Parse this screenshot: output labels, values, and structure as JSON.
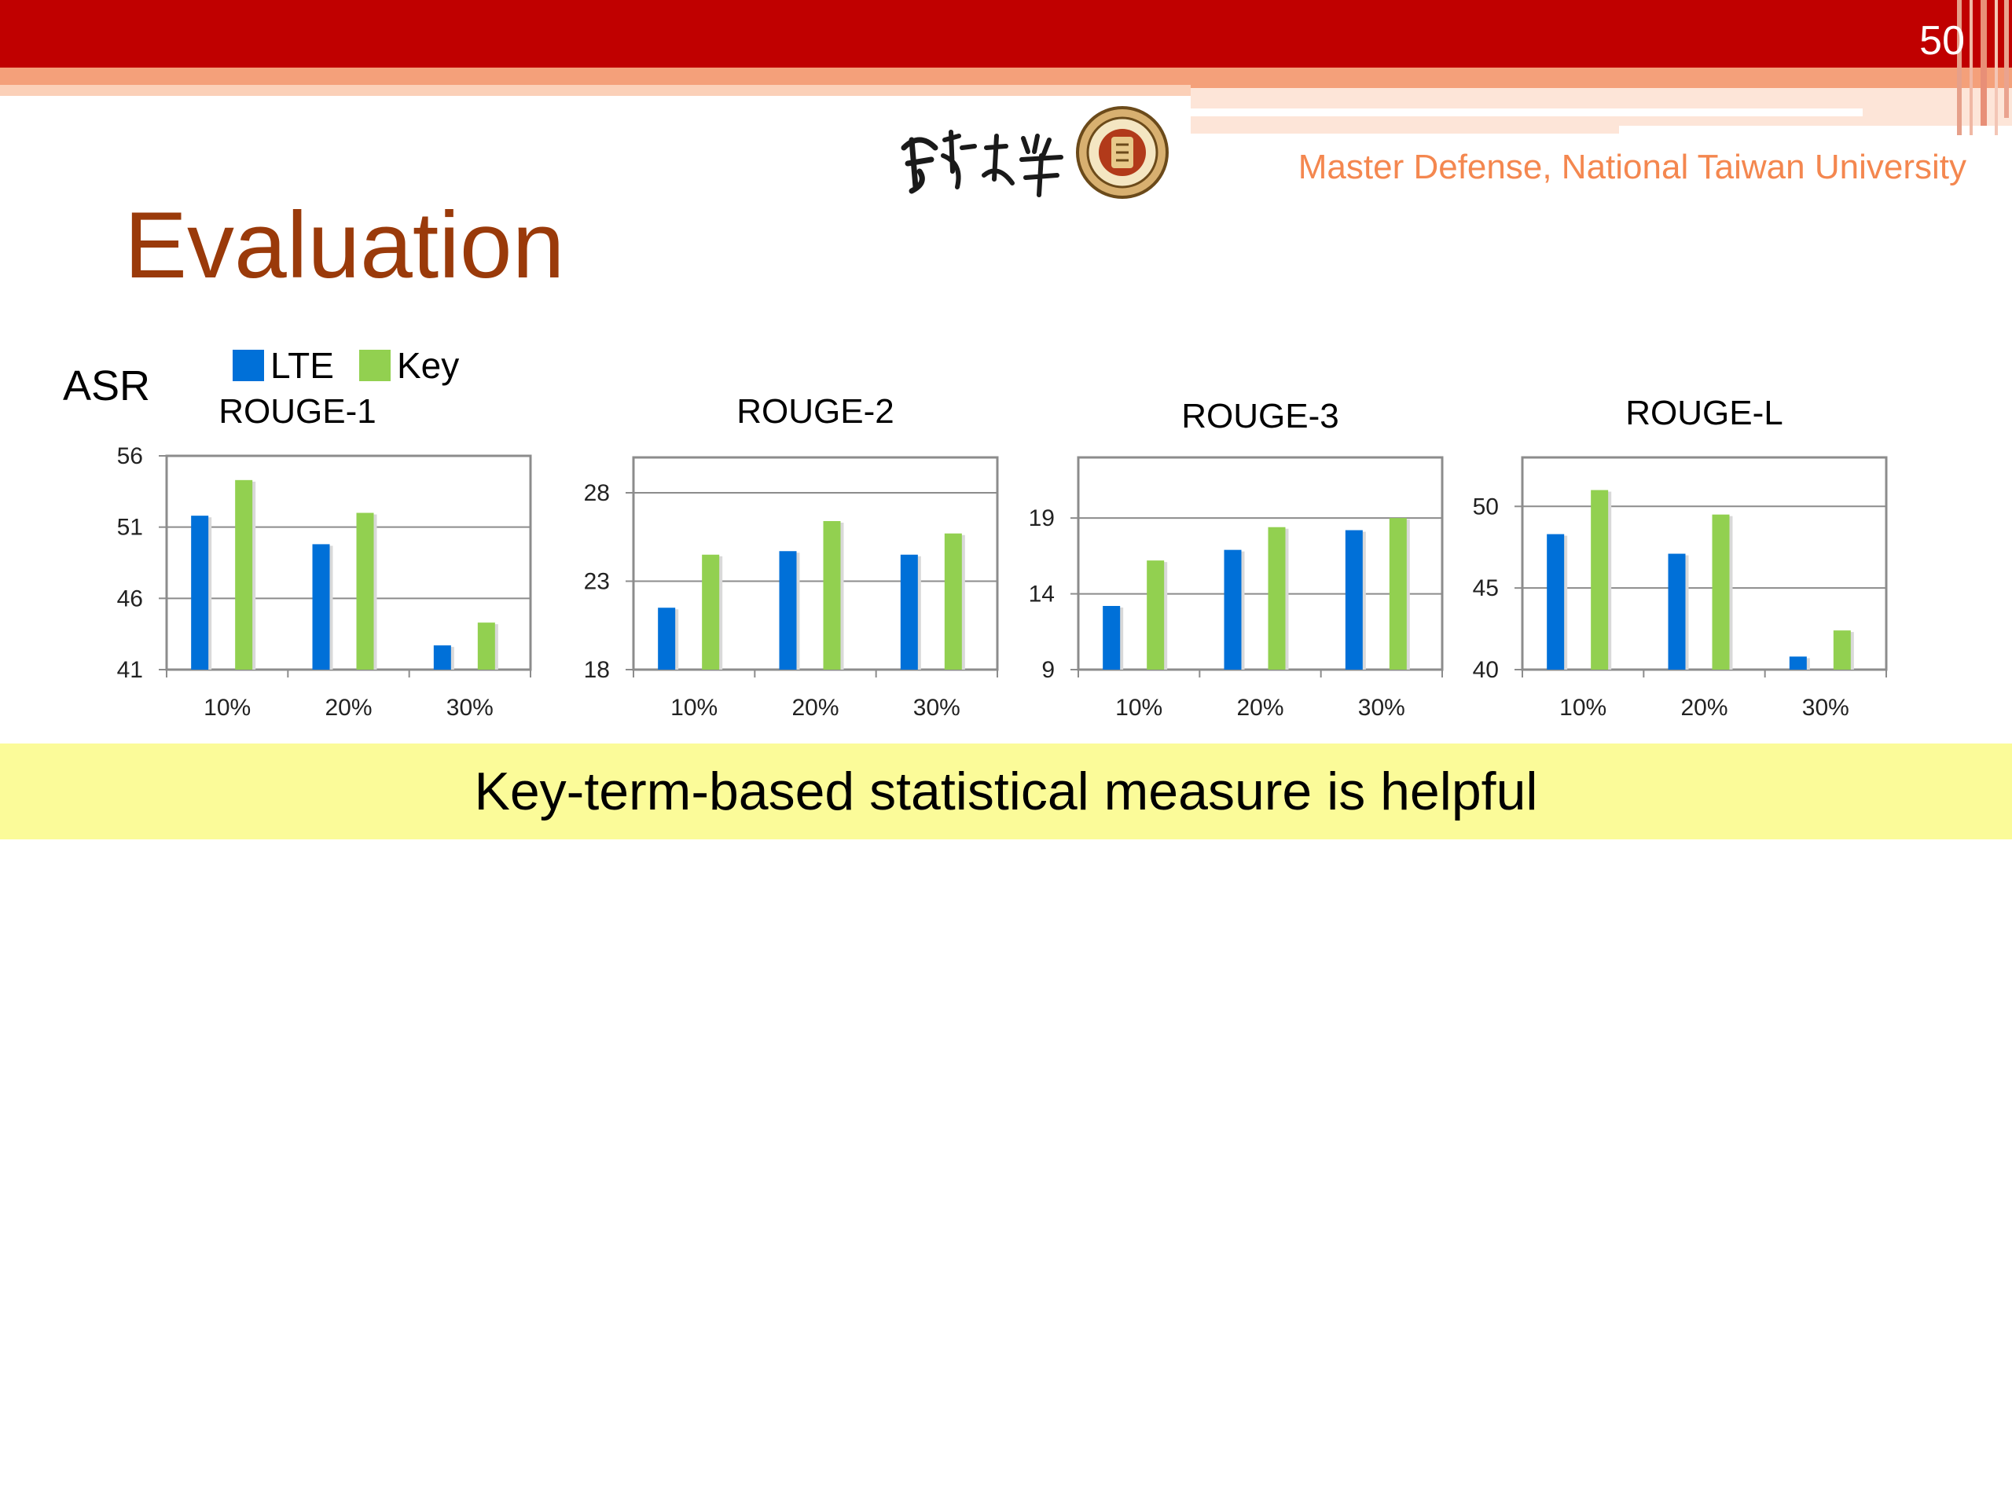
{
  "slide": {
    "number": "50",
    "org": "Master Defense, National Taiwan University",
    "title": "Evaluation",
    "asr_label": "ASR",
    "banner": "Key-term-based statistical measure is helpful"
  },
  "colors": {
    "lte": "#0070d8",
    "key": "#92d050",
    "title": "#9a3a0a",
    "accent_bar": "#c00000"
  },
  "legend": [
    {
      "label": "LTE",
      "color": "#0070d8"
    },
    {
      "label": "Key",
      "color": "#92d050"
    }
  ],
  "chart_data": [
    {
      "type": "bar",
      "title": "ROUGE-1",
      "categories": [
        "10%",
        "20%",
        "30%"
      ],
      "series": [
        {
          "name": "LTE",
          "values": [
            51.8,
            49.8,
            42.7
          ]
        },
        {
          "name": "Key",
          "values": [
            54.3,
            52.0,
            44.3
          ]
        }
      ],
      "ylim": [
        41,
        56
      ],
      "yticks": [
        41,
        46,
        51,
        56
      ]
    },
    {
      "type": "bar",
      "title": "ROUGE-2",
      "categories": [
        "10%",
        "20%",
        "30%"
      ],
      "series": [
        {
          "name": "LTE",
          "values": [
            21.5,
            24.7,
            24.5
          ]
        },
        {
          "name": "Key",
          "values": [
            24.5,
            26.4,
            25.7
          ]
        }
      ],
      "ylim": [
        18,
        30
      ],
      "yticks": [
        18,
        23,
        28
      ]
    },
    {
      "type": "bar",
      "title": "ROUGE-3",
      "categories": [
        "10%",
        "20%",
        "30%"
      ],
      "series": [
        {
          "name": "LTE",
          "values": [
            13.2,
            16.9,
            18.2
          ]
        },
        {
          "name": "Key",
          "values": [
            16.2,
            18.4,
            19.0
          ]
        }
      ],
      "ylim": [
        9,
        23
      ],
      "yticks": [
        9,
        14,
        19
      ]
    },
    {
      "type": "bar",
      "title": "ROUGE-L",
      "categories": [
        "10%",
        "20%",
        "30%"
      ],
      "series": [
        {
          "name": "LTE",
          "values": [
            48.3,
            47.1,
            40.8
          ]
        },
        {
          "name": "Key",
          "values": [
            51.0,
            49.5,
            42.4
          ]
        }
      ],
      "ylim": [
        40,
        53
      ],
      "yticks": [
        40,
        45,
        50
      ]
    }
  ]
}
